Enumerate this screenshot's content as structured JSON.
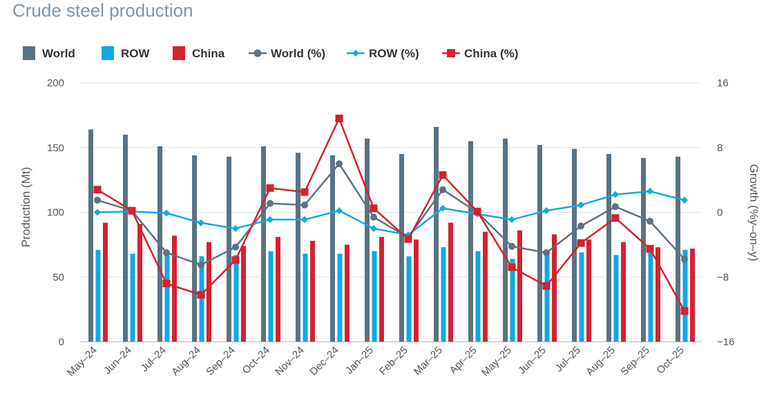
{
  "title": "Crude steel production",
  "colors": {
    "world": "#5b7282",
    "row": "#11a9e2",
    "china": "#d42231"
  },
  "chart_data": {
    "type": "bar",
    "categories": [
      "May–24",
      "Jun–24",
      "Jul–24",
      "Aug–24",
      "Sep–24",
      "Oct–24",
      "Nov–24",
      "Dec–24",
      "Jan–25",
      "Feb–25",
      "Mar–25",
      "Apr–25",
      "May–25",
      "Jun–25",
      "Jul–25",
      "Aug–25",
      "Sep–25",
      "Oct–25"
    ],
    "series": [
      {
        "name": "World",
        "kind": "bar",
        "axis": "left",
        "values": [
          164,
          160,
          151,
          144,
          143,
          151,
          146,
          144,
          157,
          145,
          166,
          155,
          157,
          152,
          149,
          145,
          142,
          143
        ]
      },
      {
        "name": "ROW",
        "kind": "bar",
        "axis": "left",
        "values": [
          71,
          68,
          69,
          66,
          67,
          70,
          68,
          68,
          70,
          66,
          73,
          70,
          64,
          68,
          69,
          67,
          70,
          71
        ]
      },
      {
        "name": "China",
        "kind": "bar",
        "axis": "left",
        "values": [
          92,
          91,
          82,
          77,
          74,
          81,
          78,
          75,
          81,
          79,
          92,
          85,
          86,
          83,
          79,
          77,
          73,
          72
        ]
      },
      {
        "name": "World (%)",
        "kind": "line",
        "axis": "right",
        "values": [
          1.5,
          0.2,
          -5,
          -6.5,
          -4.3,
          1.1,
          0.9,
          6.0,
          -0.6,
          -3.1,
          2.8,
          0.0,
          -4.2,
          -5.0,
          -1.7,
          0.7,
          -1.1,
          -5.8
        ]
      },
      {
        "name": "ROW (%)",
        "kind": "line",
        "axis": "right",
        "values": [
          0.0,
          0.1,
          -0.1,
          -1.3,
          -2.0,
          -0.9,
          -0.9,
          0.2,
          -2.0,
          -2.8,
          0.5,
          -0.2,
          -0.9,
          0.2,
          0.9,
          2.2,
          2.6,
          1.5
        ]
      },
      {
        "name": "China (%)",
        "kind": "line",
        "axis": "right",
        "values": [
          2.8,
          0.2,
          -8.8,
          -10.2,
          -5.9,
          3.0,
          2.5,
          11.6,
          0.5,
          -3.3,
          4.6,
          0.1,
          -6.8,
          -9.1,
          -3.8,
          -0.7,
          -4.5,
          -12.2
        ]
      }
    ],
    "ylabel": "Production (Mt)",
    "ylabel_right": "Growth (%y–on–y)",
    "ylim": [
      0,
      200
    ],
    "yticks": [
      "0",
      "50",
      "100",
      "150",
      "200"
    ],
    "ylim_right": [
      -16,
      16
    ],
    "yticks_right": [
      "−16",
      "−8",
      "0",
      "8",
      "16"
    ],
    "grid": true,
    "legend_position": "top-left"
  }
}
